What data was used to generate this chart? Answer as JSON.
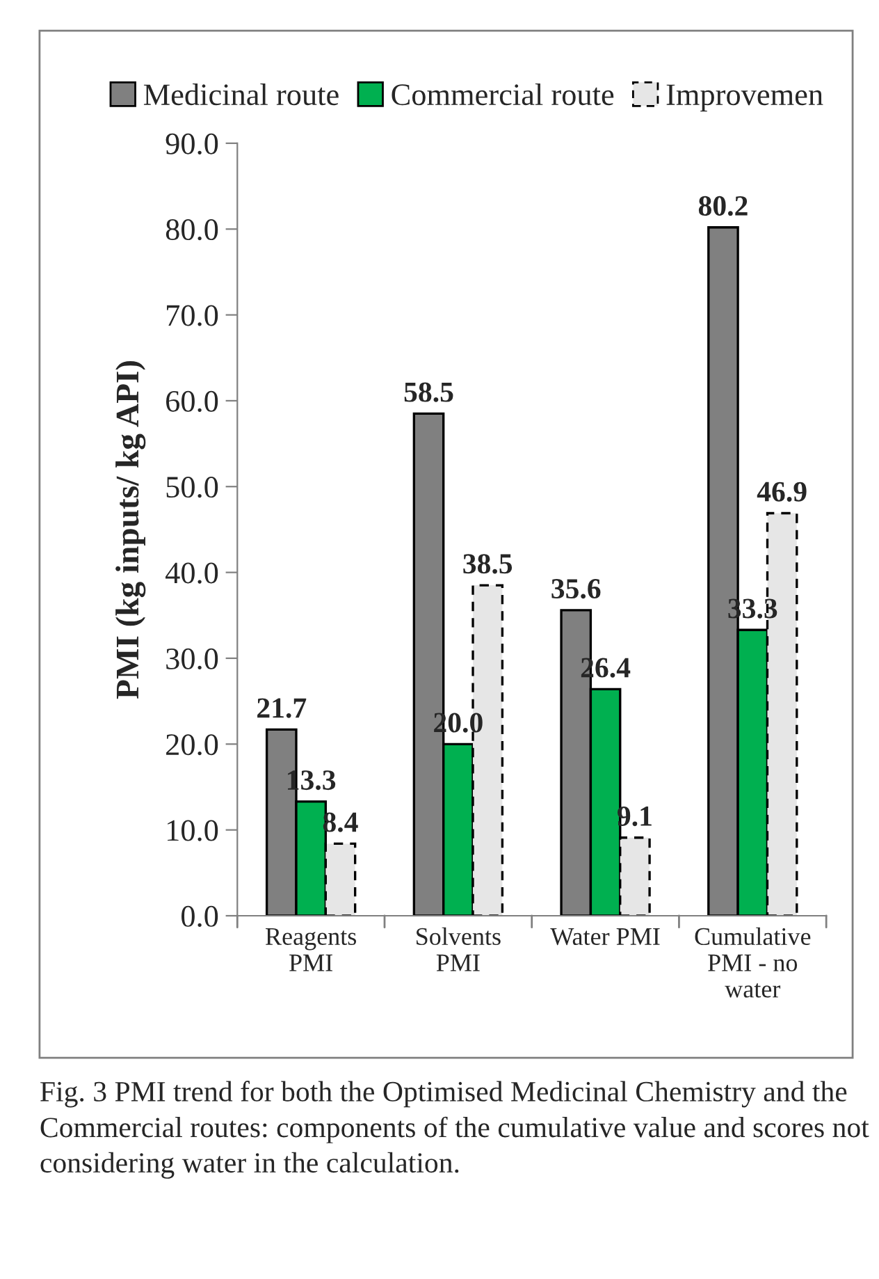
{
  "chart_data": {
    "type": "bar",
    "ylabel": "PMI (kg inputs/ kg API)",
    "categories": [
      "Reagents\nPMI",
      "Solvents\nPMI",
      "Water PMI",
      "Cumulative\nPMI - no\nwater"
    ],
    "series": [
      {
        "name": "Medicinal route",
        "color": "#808080",
        "values": [
          21.7,
          58.5,
          35.6,
          80.2
        ]
      },
      {
        "name": "Commercial route",
        "color": "#00b050",
        "values": [
          13.3,
          20.0,
          26.4,
          33.3
        ]
      },
      {
        "name": "Improvemen",
        "color": "#e6e6e6",
        "line_style": "dashed",
        "values": [
          8.4,
          38.5,
          9.1,
          46.9
        ]
      }
    ],
    "value_labels": [
      [
        "21.7",
        "58.5",
        "35.6",
        "80.2"
      ],
      [
        "13.3",
        "20.0",
        "26.4",
        "33.3"
      ],
      [
        "8.4",
        "38.5",
        "9.1",
        "46.9"
      ]
    ],
    "ylim": [
      0,
      90
    ],
    "yticks": [
      {
        "value": 0,
        "label": "0.0"
      },
      {
        "value": 10,
        "label": "10.0"
      },
      {
        "value": 20,
        "label": "20.0"
      },
      {
        "value": 30,
        "label": "30.0"
      },
      {
        "value": 40,
        "label": "40.0"
      },
      {
        "value": 50,
        "label": "50.0"
      },
      {
        "value": 60,
        "label": "60.0"
      },
      {
        "value": 70,
        "label": "70.0"
      },
      {
        "value": 80,
        "label": "80.0"
      },
      {
        "value": 90,
        "label": "90.0"
      }
    ],
    "grid": false,
    "legend": "top",
    "annotations": [
      "Fig. 3 PMI trend for both the Optimised Medicinal Chemistry and the Commercial routes: components of the cumulative value and scores not considering water in the calculation."
    ]
  }
}
